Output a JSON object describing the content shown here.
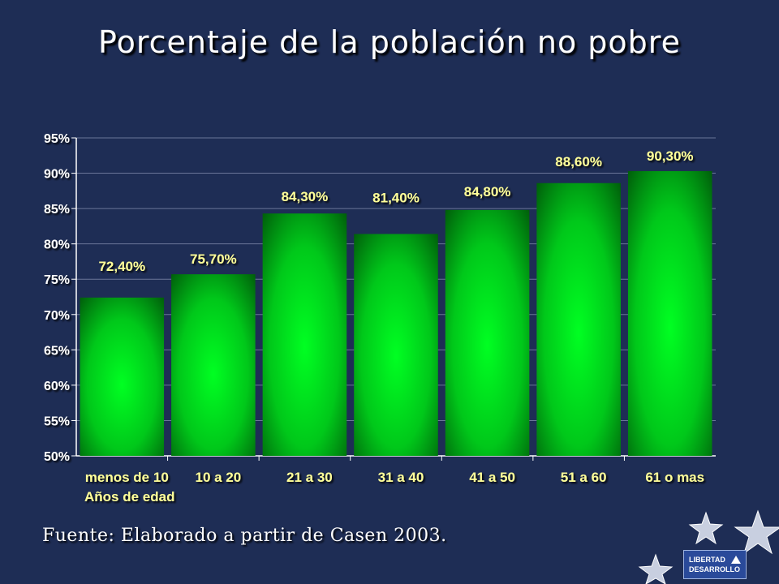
{
  "slide": {
    "title": "Porcentaje de la población no pobre",
    "source": "Fuente: Elaborado a partir de Casen 2003.",
    "logo_text_1": "LIBERTAD",
    "logo_text_2": "DESARROLLO"
  },
  "chart_data": {
    "type": "bar",
    "categories": [
      "menos de 10",
      "10 a 20",
      "21 a 30",
      "31 a 40",
      "41 a 50",
      "51 a 60",
      "61 o mas"
    ],
    "values": [
      72.4,
      75.7,
      84.3,
      81.4,
      84.8,
      88.6,
      90.3
    ],
    "data_labels": [
      "72,40%",
      "75,70%",
      "84,30%",
      "81,40%",
      "84,80%",
      "88,60%",
      "90,30%"
    ],
    "title": "Porcentaje de la población no pobre",
    "xlabel": "Años de edad",
    "ylabel": "",
    "ylim": [
      50,
      95
    ],
    "yticks": [
      50,
      55,
      60,
      65,
      70,
      75,
      80,
      85,
      90,
      95
    ],
    "ytick_labels": [
      "50%",
      "55%",
      "60%",
      "65%",
      "70%",
      "75%",
      "80%",
      "85%",
      "90%",
      "95%"
    ],
    "grid": true,
    "legend": "none",
    "colors": {
      "bar_center": "#00ff22",
      "bar_edge": "#006600",
      "label": "#ffff99",
      "axis": "#ffffff",
      "background": "#1e2d55"
    }
  }
}
